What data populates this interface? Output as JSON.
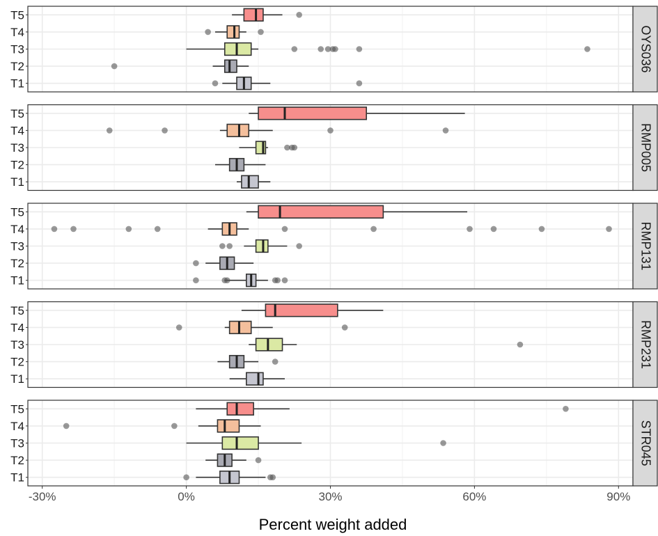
{
  "chart_data": {
    "type": "boxplot",
    "xlabel": "Percent weight added",
    "ylabel": "",
    "xlim": [
      -33,
      93
    ],
    "x_ticks": [
      -30,
      0,
      30,
      60,
      90
    ],
    "x_tick_labels": [
      "-30%",
      "0%",
      "30%",
      "60%",
      "90%"
    ],
    "categories": [
      "T1",
      "T2",
      "T3",
      "T4",
      "T5"
    ],
    "colors": {
      "T1": "#c5c6d0",
      "T2": "#a9aab3",
      "T3": "#dbe9a4",
      "T4": "#f4bf9c",
      "T5": "#f78e8c"
    },
    "panels": [
      {
        "name": "OYS036",
        "boxes": [
          {
            "cat": "T1",
            "whisker_low": 7.5,
            "q1": 10.5,
            "median": 12,
            "q3": 13.5,
            "whisker_high": 17.5,
            "outliers": [
              6,
              36
            ]
          },
          {
            "cat": "T2",
            "whisker_low": 5.5,
            "q1": 8,
            "median": 9,
            "q3": 10.5,
            "whisker_high": 13,
            "outliers": [
              -15
            ]
          },
          {
            "cat": "T3",
            "whisker_low": 0,
            "q1": 8,
            "median": 10.5,
            "q3": 13.5,
            "whisker_high": 15,
            "outliers": [
              22.5,
              28,
              29.5,
              30.5,
              31,
              36,
              83.5
            ]
          },
          {
            "cat": "T4",
            "whisker_low": 6,
            "q1": 8.5,
            "median": 10,
            "q3": 11,
            "whisker_high": 12.5,
            "outliers": [
              4.5,
              15.5
            ]
          },
          {
            "cat": "T5",
            "whisker_low": 9.5,
            "q1": 12,
            "median": 14.5,
            "q3": 16,
            "whisker_high": 20,
            "outliers": [
              23.5
            ]
          }
        ]
      },
      {
        "name": "RMP005",
        "boxes": [
          {
            "cat": "T1",
            "whisker_low": 10.5,
            "q1": 11.5,
            "median": 13,
            "q3": 15,
            "whisker_high": 17.5,
            "outliers": []
          },
          {
            "cat": "T2",
            "whisker_low": 6,
            "q1": 9,
            "median": 10.5,
            "q3": 12,
            "whisker_high": 16.5,
            "outliers": []
          },
          {
            "cat": "T3",
            "whisker_low": 11,
            "q1": 14.5,
            "median": 16,
            "q3": 16.5,
            "whisker_high": 17,
            "outliers": [
              21,
              22,
              22.5
            ]
          },
          {
            "cat": "T4",
            "whisker_low": 7,
            "q1": 8.5,
            "median": 11,
            "q3": 13,
            "whisker_high": 18,
            "outliers": [
              -16,
              -4.5,
              30,
              54
            ]
          },
          {
            "cat": "T5",
            "whisker_low": 13,
            "q1": 15,
            "median": 20.5,
            "q3": 37.5,
            "whisker_high": 58,
            "outliers": []
          }
        ]
      },
      {
        "name": "RMP131",
        "boxes": [
          {
            "cat": "T1",
            "whisker_low": 8,
            "q1": 12.5,
            "median": 13.5,
            "q3": 14.5,
            "whisker_high": 17,
            "outliers": [
              2,
              8,
              8.5,
              18.5,
              19,
              20.5
            ]
          },
          {
            "cat": "T2",
            "whisker_low": 4,
            "q1": 7,
            "median": 8.5,
            "q3": 10,
            "whisker_high": 14,
            "outliers": [
              2
            ]
          },
          {
            "cat": "T3",
            "whisker_low": 12,
            "q1": 14.5,
            "median": 16,
            "q3": 17,
            "whisker_high": 21,
            "outliers": [
              7.5,
              9,
              23.5
            ]
          },
          {
            "cat": "T4",
            "whisker_low": 4.5,
            "q1": 7.5,
            "median": 9,
            "q3": 10.5,
            "whisker_high": 13,
            "outliers": [
              -27.5,
              -23.5,
              -12,
              -6,
              20.5,
              39,
              59,
              64,
              74,
              88
            ]
          },
          {
            "cat": "T5",
            "whisker_low": 12.5,
            "q1": 15,
            "median": 19.5,
            "q3": 41,
            "whisker_high": 58.5,
            "outliers": []
          }
        ]
      },
      {
        "name": "RMP231",
        "boxes": [
          {
            "cat": "T1",
            "whisker_low": 9,
            "q1": 12.5,
            "median": 15,
            "q3": 16,
            "whisker_high": 20.5,
            "outliers": []
          },
          {
            "cat": "T2",
            "whisker_low": 6.5,
            "q1": 9,
            "median": 10.5,
            "q3": 12,
            "whisker_high": 15,
            "outliers": [
              18.5
            ]
          },
          {
            "cat": "T3",
            "whisker_low": 13,
            "q1": 14.5,
            "median": 17,
            "q3": 20,
            "whisker_high": 23,
            "outliers": [
              69.5
            ]
          },
          {
            "cat": "T4",
            "whisker_low": 8,
            "q1": 9,
            "median": 11,
            "q3": 13.5,
            "whisker_high": 18,
            "outliers": [
              -1.5,
              33
            ]
          },
          {
            "cat": "T5",
            "whisker_low": 11.5,
            "q1": 16.5,
            "median": 18.5,
            "q3": 31.5,
            "whisker_high": 41,
            "outliers": []
          }
        ]
      },
      {
        "name": "STR045",
        "boxes": [
          {
            "cat": "T1",
            "whisker_low": 2,
            "q1": 7,
            "median": 9,
            "q3": 11,
            "whisker_high": 16.5,
            "outliers": [
              0,
              17.5,
              18
            ]
          },
          {
            "cat": "T2",
            "whisker_low": 4,
            "q1": 6.5,
            "median": 8,
            "q3": 9.5,
            "whisker_high": 12.5,
            "outliers": [
              15
            ]
          },
          {
            "cat": "T3",
            "whisker_low": 0,
            "q1": 7.5,
            "median": 10.5,
            "q3": 15,
            "whisker_high": 24,
            "outliers": [
              53.5
            ]
          },
          {
            "cat": "T4",
            "whisker_low": 2.5,
            "q1": 6.5,
            "median": 8,
            "q3": 11,
            "whisker_high": 15.5,
            "outliers": [
              -25,
              -2.5
            ]
          },
          {
            "cat": "T5",
            "whisker_low": 2,
            "q1": 8.5,
            "median": 10.5,
            "q3": 14,
            "whisker_high": 21.5,
            "outliers": [
              79
            ]
          }
        ]
      }
    ]
  }
}
